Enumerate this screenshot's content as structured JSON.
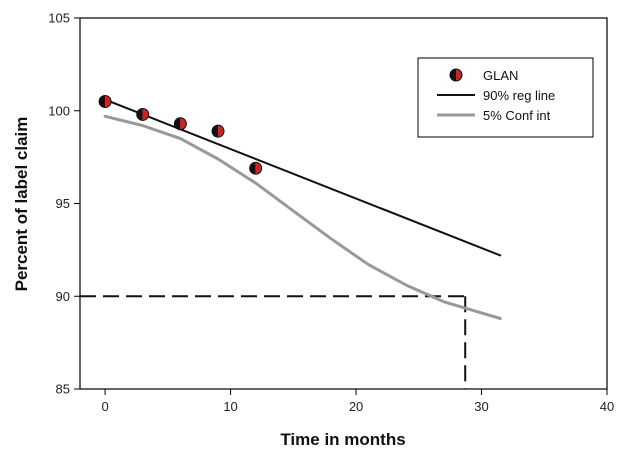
{
  "chart_data": {
    "type": "scatter",
    "xlabel": "Time in months",
    "ylabel": "Percent of label claim",
    "xlim": [
      -2,
      40
    ],
    "ylim": [
      85,
      105
    ],
    "xticks": [
      0,
      10,
      20,
      30,
      40
    ],
    "yticks": [
      85,
      90,
      95,
      100,
      105
    ],
    "grid": false,
    "legend_position": "top-right",
    "series": [
      {
        "name": "GLAN",
        "kind": "points",
        "x": [
          0,
          3,
          6,
          9,
          12
        ],
        "y": [
          100.5,
          99.8,
          99.3,
          98.9,
          96.9
        ],
        "marker_colors": [
          "#111111",
          "#d42020"
        ]
      },
      {
        "name": "90% reg line",
        "kind": "line",
        "color": "#111111",
        "x": [
          0,
          31.5
        ],
        "y": [
          100.6,
          92.2
        ]
      },
      {
        "name": "5% Conf int",
        "kind": "line",
        "color": "#999999",
        "x": [
          0,
          3,
          6,
          9,
          12,
          15,
          18,
          21,
          24,
          27,
          30,
          31.5
        ],
        "y": [
          99.7,
          99.2,
          98.5,
          97.4,
          96.1,
          94.6,
          93.1,
          91.7,
          90.6,
          89.7,
          89.1,
          88.8
        ]
      }
    ],
    "reference_lines": {
      "y_level": 90,
      "x_intersect": 28.7,
      "style": "dashed"
    }
  }
}
